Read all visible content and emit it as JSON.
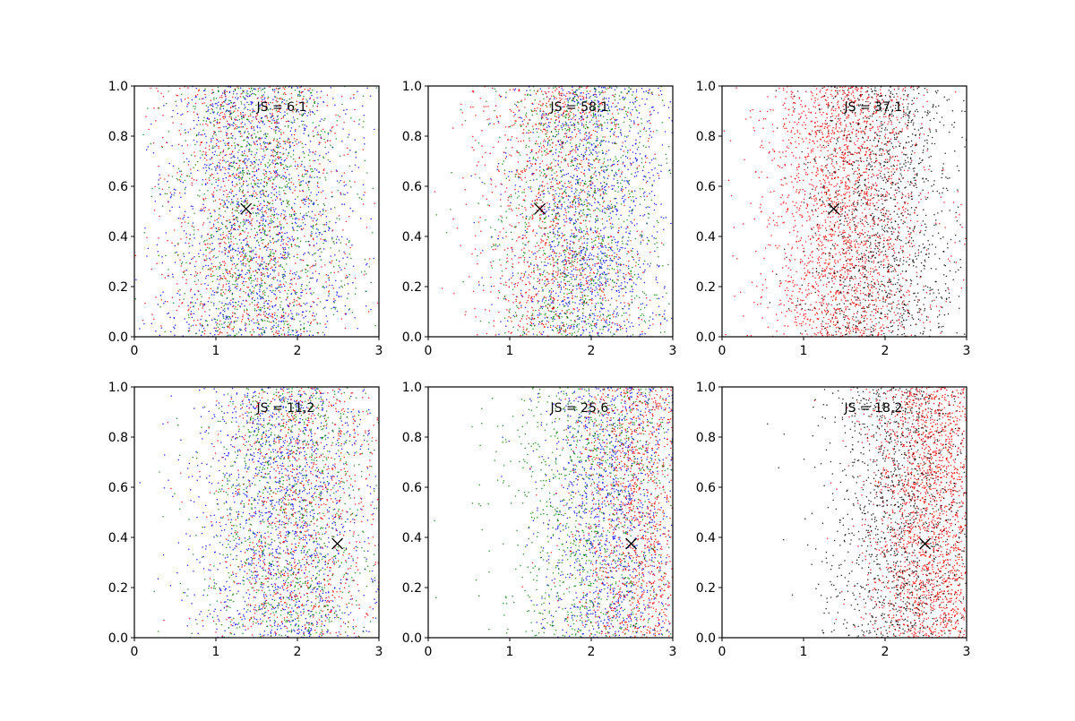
{
  "chart_data": [
    {
      "type": "scatter",
      "annotation": "JS = 6,1",
      "marker": {
        "x": 1.37,
        "y": 0.51,
        "symbol": "x",
        "color": "#000000"
      },
      "xlim": [
        0,
        3
      ],
      "ylim": [
        0,
        1
      ],
      "xticks": [
        "0",
        "1",
        "2",
        "3"
      ],
      "yticks": [
        "0.0",
        "0.2",
        "0.4",
        "0.6",
        "0.8",
        "1.0"
      ],
      "series": [
        {
          "color": "#0000ff",
          "count": 1400,
          "x_center": 1.55,
          "x_spread": 0.62
        },
        {
          "color": "#ff0000",
          "count": 1100,
          "x_center": 1.45,
          "x_spread": 0.58
        },
        {
          "color": "#008000",
          "count": 1100,
          "x_center": 1.55,
          "x_spread": 0.55
        }
      ]
    },
    {
      "type": "scatter",
      "annotation": "JS = 58,1",
      "marker": {
        "x": 1.37,
        "y": 0.51,
        "symbol": "x",
        "color": "#000000"
      },
      "xlim": [
        0,
        3
      ],
      "ylim": [
        0,
        1
      ],
      "xticks": [
        "0",
        "1",
        "2",
        "3"
      ],
      "yticks": [
        "0.0",
        "0.2",
        "0.4",
        "0.6",
        "0.8",
        "1.0"
      ],
      "series": [
        {
          "color": "#0000ff",
          "count": 1300,
          "x_center": 2.0,
          "x_spread": 0.5
        },
        {
          "color": "#ff0000",
          "count": 1200,
          "x_center": 1.6,
          "x_spread": 0.5
        },
        {
          "color": "#008000",
          "count": 1100,
          "x_center": 1.85,
          "x_spread": 0.55
        }
      ]
    },
    {
      "type": "scatter",
      "annotation": "JS = 37,1",
      "marker": {
        "x": 1.37,
        "y": 0.51,
        "symbol": "x",
        "color": "#000000"
      },
      "xlim": [
        0,
        3
      ],
      "ylim": [
        0,
        1
      ],
      "xticks": [
        "0",
        "1",
        "2",
        "3"
      ],
      "yticks": [
        "0.0",
        "0.2",
        "0.4",
        "0.6",
        "0.8",
        "1.0"
      ],
      "series": [
        {
          "color": "#ff0000",
          "count": 2200,
          "x_center": 1.5,
          "x_spread": 0.5
        },
        {
          "color": "#000000",
          "count": 1300,
          "x_center": 2.0,
          "x_spread": 0.5
        }
      ]
    },
    {
      "type": "scatter",
      "annotation": "JS = 11,2",
      "marker": {
        "x": 2.49,
        "y": 0.375,
        "symbol": "x",
        "color": "#000000"
      },
      "xlim": [
        0,
        3
      ],
      "ylim": [
        0,
        1
      ],
      "xticks": [
        "0",
        "1",
        "2",
        "3"
      ],
      "yticks": [
        "0.0",
        "0.2",
        "0.4",
        "0.6",
        "0.8",
        "1.0"
      ],
      "series": [
        {
          "color": "#0000ff",
          "count": 1400,
          "x_center": 1.85,
          "x_spread": 0.6
        },
        {
          "color": "#ff0000",
          "count": 1000,
          "x_center": 2.0,
          "x_spread": 0.55
        },
        {
          "color": "#008000",
          "count": 1000,
          "x_center": 1.9,
          "x_spread": 0.55
        }
      ]
    },
    {
      "type": "scatter",
      "annotation": "JS = 25,6",
      "marker": {
        "x": 2.49,
        "y": 0.375,
        "symbol": "x",
        "color": "#000000"
      },
      "xlim": [
        0,
        3
      ],
      "ylim": [
        0,
        1
      ],
      "xticks": [
        "0",
        "1",
        "2",
        "3"
      ],
      "yticks": [
        "0.0",
        "0.2",
        "0.4",
        "0.6",
        "0.8",
        "1.0"
      ],
      "series": [
        {
          "color": "#0000ff",
          "count": 1200,
          "x_center": 2.3,
          "x_spread": 0.45
        },
        {
          "color": "#ff0000",
          "count": 1300,
          "x_center": 2.6,
          "x_spread": 0.4
        },
        {
          "color": "#008000",
          "count": 1000,
          "x_center": 2.0,
          "x_spread": 0.55
        }
      ]
    },
    {
      "type": "scatter",
      "annotation": "JS = 18,2",
      "marker": {
        "x": 2.49,
        "y": 0.375,
        "symbol": "x",
        "color": "#000000"
      },
      "xlim": [
        0,
        3
      ],
      "ylim": [
        0,
        1
      ],
      "xticks": [
        "0",
        "1",
        "2",
        "3"
      ],
      "yticks": [
        "0.0",
        "0.2",
        "0.4",
        "0.6",
        "0.8",
        "1.0"
      ],
      "series": [
        {
          "color": "#ff0000",
          "count": 2200,
          "x_center": 2.6,
          "x_spread": 0.4
        },
        {
          "color": "#000000",
          "count": 1300,
          "x_center": 2.2,
          "x_spread": 0.45
        }
      ]
    }
  ]
}
